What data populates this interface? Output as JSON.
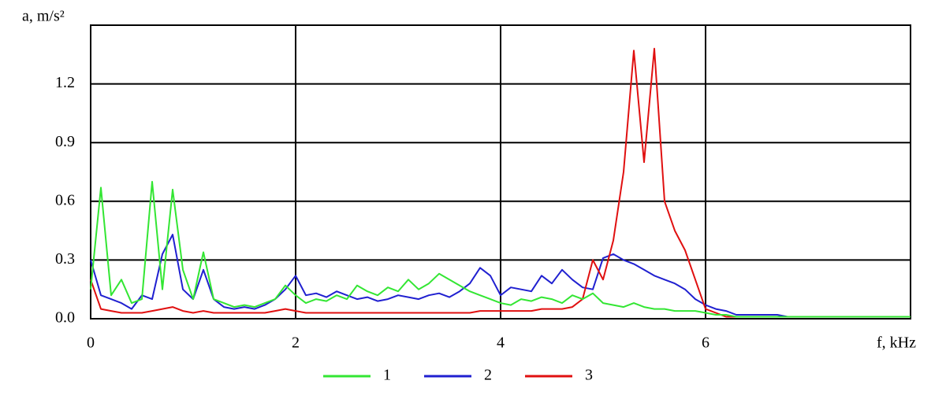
{
  "chart_data": {
    "type": "line",
    "y_label": "a, m/s²",
    "x_label": "f, kHz",
    "x": [
      0,
      0.1,
      0.2,
      0.3,
      0.4,
      0.5,
      0.6,
      0.7,
      0.8,
      0.9,
      1.0,
      1.1,
      1.2,
      1.3,
      1.4,
      1.5,
      1.6,
      1.7,
      1.8,
      1.9,
      2.0,
      2.1,
      2.2,
      2.3,
      2.4,
      2.5,
      2.6,
      2.7,
      2.8,
      2.9,
      3.0,
      3.1,
      3.2,
      3.3,
      3.4,
      3.5,
      3.6,
      3.7,
      3.8,
      3.9,
      4.0,
      4.1,
      4.2,
      4.3,
      4.4,
      4.5,
      4.6,
      4.7,
      4.8,
      4.9,
      5.0,
      5.1,
      5.2,
      5.3,
      5.4,
      5.5,
      5.6,
      5.7,
      5.8,
      5.9,
      6.0,
      6.1,
      6.2,
      6.3,
      6.4,
      6.5,
      6.6,
      6.7,
      6.8,
      6.9,
      7.0,
      7.1,
      7.2,
      7.3,
      7.4,
      7.5,
      7.6,
      7.7,
      7.8,
      7.9,
      8.0
    ],
    "series": [
      {
        "name": "1",
        "color": "#33e633",
        "values": [
          0.15,
          0.67,
          0.12,
          0.2,
          0.08,
          0.1,
          0.7,
          0.15,
          0.66,
          0.25,
          0.1,
          0.34,
          0.1,
          0.08,
          0.06,
          0.07,
          0.06,
          0.08,
          0.1,
          0.17,
          0.12,
          0.08,
          0.1,
          0.09,
          0.12,
          0.1,
          0.17,
          0.14,
          0.12,
          0.16,
          0.14,
          0.2,
          0.15,
          0.18,
          0.23,
          0.2,
          0.17,
          0.14,
          0.12,
          0.1,
          0.08,
          0.07,
          0.1,
          0.09,
          0.11,
          0.1,
          0.08,
          0.12,
          0.1,
          0.13,
          0.08,
          0.07,
          0.06,
          0.08,
          0.06,
          0.05,
          0.05,
          0.04,
          0.04,
          0.04,
          0.03,
          0.02,
          0.02,
          0.01,
          0.01,
          0.01,
          0.01,
          0.01,
          0.01,
          0.01,
          0.01,
          0.01,
          0.01,
          0.01,
          0.01,
          0.01,
          0.01,
          0.01,
          0.01,
          0.01,
          0.01
        ]
      },
      {
        "name": "2",
        "color": "#2020d0",
        "values": [
          0.3,
          0.12,
          0.1,
          0.08,
          0.05,
          0.12,
          0.1,
          0.33,
          0.43,
          0.15,
          0.1,
          0.25,
          0.1,
          0.06,
          0.05,
          0.06,
          0.05,
          0.07,
          0.1,
          0.15,
          0.22,
          0.12,
          0.13,
          0.11,
          0.14,
          0.12,
          0.1,
          0.11,
          0.09,
          0.1,
          0.12,
          0.11,
          0.1,
          0.12,
          0.13,
          0.11,
          0.14,
          0.18,
          0.26,
          0.22,
          0.12,
          0.16,
          0.15,
          0.14,
          0.22,
          0.18,
          0.25,
          0.2,
          0.16,
          0.15,
          0.31,
          0.33,
          0.3,
          0.28,
          0.25,
          0.22,
          0.2,
          0.18,
          0.15,
          0.1,
          0.07,
          0.05,
          0.04,
          0.02,
          0.02,
          0.02,
          0.02,
          0.02,
          0.01,
          0.01,
          0.01,
          0.01,
          0.01,
          0.01,
          0.01,
          0.01,
          0.01,
          0.01,
          0.01,
          0.01,
          0.01
        ]
      },
      {
        "name": "3",
        "color": "#e01010",
        "values": [
          0.2,
          0.05,
          0.04,
          0.03,
          0.03,
          0.03,
          0.04,
          0.05,
          0.06,
          0.04,
          0.03,
          0.04,
          0.03,
          0.03,
          0.03,
          0.03,
          0.03,
          0.03,
          0.04,
          0.05,
          0.04,
          0.03,
          0.03,
          0.03,
          0.03,
          0.03,
          0.03,
          0.03,
          0.03,
          0.03,
          0.03,
          0.03,
          0.03,
          0.03,
          0.03,
          0.03,
          0.03,
          0.03,
          0.04,
          0.04,
          0.04,
          0.04,
          0.04,
          0.04,
          0.05,
          0.05,
          0.05,
          0.06,
          0.1,
          0.3,
          0.2,
          0.4,
          0.75,
          1.37,
          0.8,
          1.38,
          0.6,
          0.45,
          0.35,
          0.2,
          0.05,
          0.03,
          0.01,
          0.01,
          0.01,
          0.01,
          0.01,
          0.01,
          0.01,
          0.01,
          0.01,
          0.01,
          0.01,
          0.01,
          0.01,
          0.01,
          0.01,
          0.01,
          0.01,
          0.01,
          0.01
        ]
      }
    ],
    "draw_order": [
      1,
      2,
      0
    ],
    "xlim": [
      0,
      8
    ],
    "xticks": [
      0,
      2,
      4,
      6
    ],
    "ylim": [
      0,
      1.5
    ],
    "yticks": [
      {
        "value": 0,
        "label": "0.0"
      },
      0.3,
      0.6,
      0.9,
      1.2
    ],
    "grid": true
  }
}
